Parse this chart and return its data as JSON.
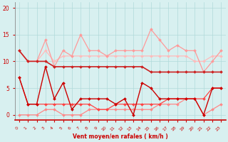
{
  "x": [
    0,
    1,
    2,
    3,
    4,
    5,
    6,
    7,
    8,
    9,
    10,
    11,
    12,
    13,
    14,
    15,
    16,
    17,
    18,
    19,
    20,
    21,
    22,
    23
  ],
  "lines": [
    {
      "y": [
        12,
        10,
        10,
        10,
        9,
        9,
        9,
        9,
        9,
        9,
        9,
        9,
        9,
        9,
        9,
        8,
        8,
        8,
        8,
        8,
        8,
        8,
        8,
        8
      ],
      "color": "#cc2222",
      "lw": 1.2,
      "marker": "D",
      "ms": 2.0,
      "zorder": 5
    },
    {
      "y": [
        7,
        2,
        2,
        9,
        3,
        6,
        1,
        3,
        3,
        3,
        3,
        2,
        3,
        0,
        6,
        5,
        3,
        3,
        3,
        3,
        3,
        0,
        5,
        5
      ],
      "color": "#cc0000",
      "lw": 1.0,
      "marker": "D",
      "ms": 2.0,
      "zorder": 6
    },
    {
      "y": [
        7,
        2,
        2,
        2,
        2,
        2,
        2,
        2,
        2,
        1,
        1,
        2,
        2,
        2,
        2,
        2,
        2,
        3,
        3,
        3,
        3,
        3,
        5,
        5
      ],
      "color": "#ff4444",
      "lw": 0.9,
      "marker": "D",
      "ms": 2.0,
      "zorder": 4
    },
    {
      "y": [
        0,
        0,
        0,
        1,
        1,
        0,
        0,
        0,
        1,
        1,
        1,
        1,
        1,
        1,
        1,
        1,
        2,
        2,
        2,
        3,
        3,
        0,
        1,
        2
      ],
      "color": "#ff8888",
      "lw": 0.9,
      "marker": "D",
      "ms": 2.0,
      "zorder": 3
    },
    {
      "y": [
        12,
        10,
        10,
        14,
        9,
        12,
        11,
        15,
        12,
        12,
        11,
        12,
        12,
        12,
        12,
        16,
        14,
        12,
        13,
        12,
        12,
        8,
        10,
        12
      ],
      "color": "#ff9999",
      "lw": 0.9,
      "marker": "D",
      "ms": 2.0,
      "zorder": 2
    },
    {
      "y": [
        12,
        10,
        10,
        12,
        10,
        11,
        11,
        11,
        11,
        11,
        11,
        11,
        11,
        11,
        11,
        11,
        11,
        11,
        11,
        11,
        10,
        10,
        11,
        11
      ],
      "color": "#ffbbbb",
      "lw": 0.9,
      "marker": "D",
      "ms": 2.0,
      "zorder": 1
    }
  ],
  "bg_color": "#d8f0f0",
  "grid_color": "#b0dada",
  "xlabel": "Vent moyen/en rafales ( km/h )",
  "ylim": [
    -1,
    21
  ],
  "xlim": [
    -0.5,
    23.5
  ],
  "yticks": [
    0,
    5,
    10,
    15,
    20
  ],
  "xticks": [
    0,
    1,
    2,
    3,
    4,
    5,
    6,
    7,
    8,
    9,
    10,
    11,
    12,
    13,
    14,
    15,
    16,
    17,
    18,
    19,
    20,
    21,
    22,
    23
  ]
}
